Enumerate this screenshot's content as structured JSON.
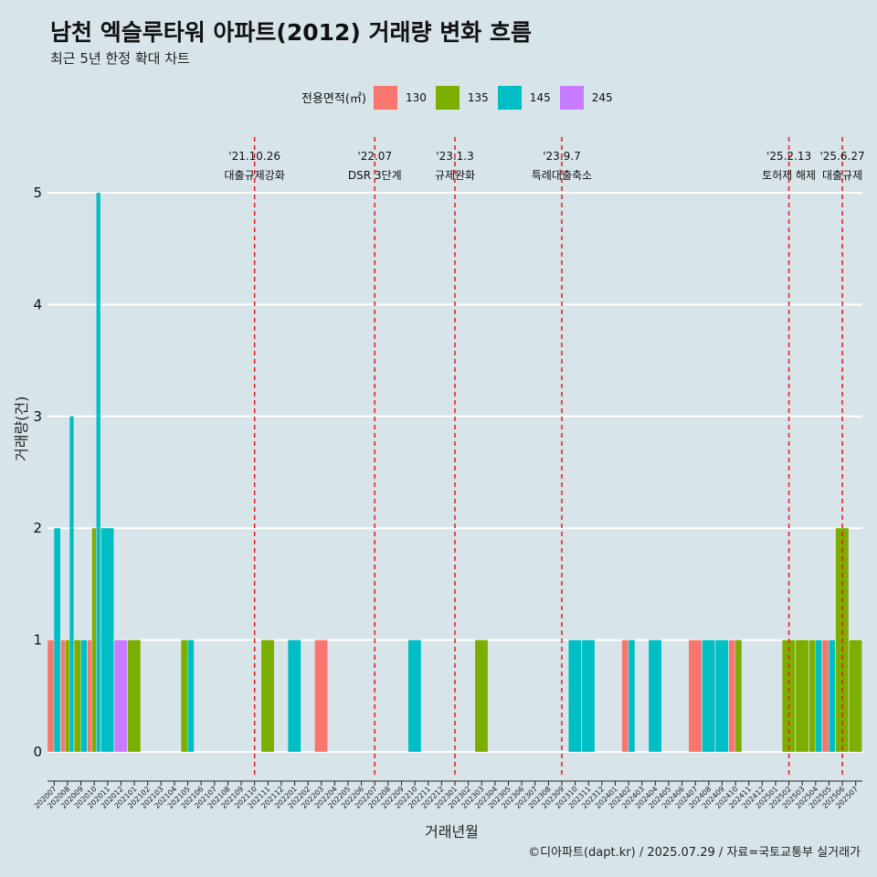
{
  "title": "남천 엑슬루타워 아파트(2012) 거래량 변화 흐름",
  "subtitle": "최근 5년 한정 확대 차트",
  "caption": "©디아파트(dapt.kr) / 2025.07.29 / 자료=국토교통부 실거래가",
  "legend_title": "전용면적(㎡)",
  "colors": {
    "130": "#F8766D",
    "135": "#7CAE00",
    "145": "#00BFC4",
    "245": "#C77CFF",
    "event_line": "#e8191a"
  },
  "chart_data": {
    "type": "bar",
    "xlabel": "거래년월",
    "ylabel": "거래량(건)",
    "ylim": [
      0,
      5
    ],
    "yticks": [
      0,
      1,
      2,
      3,
      4,
      5
    ],
    "grid": true,
    "legend_placement": "top",
    "categories": [
      "202007",
      "202008",
      "202009",
      "202010",
      "202011",
      "202012",
      "202101",
      "202102",
      "202103",
      "202104",
      "202105",
      "202106",
      "202107",
      "202108",
      "202109",
      "202110",
      "202111",
      "202112",
      "202201",
      "202202",
      "202203",
      "202204",
      "202205",
      "202206",
      "202207",
      "202208",
      "202209",
      "202210",
      "202211",
      "202212",
      "202301",
      "202302",
      "202303",
      "202304",
      "202305",
      "202306",
      "202307",
      "202308",
      "202309",
      "202310",
      "202311",
      "202312",
      "202401",
      "202402",
      "202403",
      "202404",
      "202405",
      "202406",
      "202407",
      "202408",
      "202409",
      "202410",
      "202411",
      "202412",
      "202501",
      "202502",
      "202503",
      "202504",
      "202505",
      "202506",
      "202507"
    ],
    "series": [
      {
        "name": "130",
        "values": [
          1,
          1,
          0,
          1,
          0,
          0,
          0,
          0,
          0,
          0,
          0,
          0,
          0,
          0,
          0,
          0,
          0,
          0,
          0,
          0,
          1,
          0,
          0,
          0,
          0,
          0,
          0,
          0,
          0,
          0,
          0,
          0,
          0,
          0,
          0,
          0,
          0,
          0,
          0,
          0,
          0,
          0,
          0,
          1,
          0,
          0,
          0,
          0,
          1,
          0,
          0,
          1,
          0,
          0,
          0,
          0,
          0,
          0,
          1,
          0,
          0
        ]
      },
      {
        "name": "135",
        "values": [
          0,
          1,
          1,
          2,
          0,
          0,
          1,
          0,
          0,
          0,
          1,
          0,
          0,
          0,
          0,
          0,
          1,
          0,
          0,
          0,
          0,
          0,
          0,
          0,
          0,
          0,
          0,
          0,
          0,
          0,
          0,
          0,
          1,
          0,
          0,
          0,
          0,
          0,
          0,
          0,
          0,
          0,
          0,
          0,
          0,
          0,
          0,
          0,
          0,
          0,
          0,
          1,
          0,
          0,
          0,
          1,
          1,
          1,
          0,
          2,
          1
        ]
      },
      {
        "name": "145",
        "values": [
          2,
          3,
          1,
          5,
          2,
          0,
          0,
          0,
          0,
          0,
          1,
          0,
          0,
          0,
          0,
          0,
          0,
          0,
          1,
          0,
          0,
          0,
          0,
          0,
          0,
          0,
          0,
          1,
          0,
          0,
          0,
          0,
          0,
          0,
          0,
          0,
          0,
          0,
          0,
          1,
          1,
          0,
          0,
          1,
          0,
          1,
          0,
          0,
          0,
          1,
          1,
          0,
          0,
          0,
          0,
          0,
          0,
          1,
          1,
          0,
          0
        ]
      },
      {
        "name": "245",
        "values": [
          0,
          0,
          0,
          0,
          0,
          1,
          0,
          0,
          0,
          0,
          0,
          0,
          0,
          0,
          0,
          0,
          0,
          0,
          0,
          0,
          0,
          0,
          0,
          0,
          0,
          0,
          0,
          0,
          0,
          0,
          0,
          0,
          0,
          0,
          0,
          0,
          0,
          0,
          0,
          0,
          0,
          0,
          0,
          0,
          0,
          0,
          0,
          0,
          0,
          0,
          0,
          0,
          0,
          0,
          0,
          0,
          0,
          0,
          0,
          0,
          0
        ]
      }
    ],
    "events": [
      {
        "x": "202110",
        "date": "'21.10.26",
        "label": "대출규제강화"
      },
      {
        "x": "202207",
        "date": "'22.07",
        "label": "DSR 3단계"
      },
      {
        "x": "202301",
        "date": "'23.1.3",
        "label": "규제완화"
      },
      {
        "x": "202309",
        "date": "'23.9.7",
        "label": "특례대출축소"
      },
      {
        "x": "202502",
        "date": "'25.2.13",
        "label": "토허제 해제"
      },
      {
        "x": "202506",
        "date": "'25.6.27",
        "label": "대출규제"
      }
    ]
  }
}
